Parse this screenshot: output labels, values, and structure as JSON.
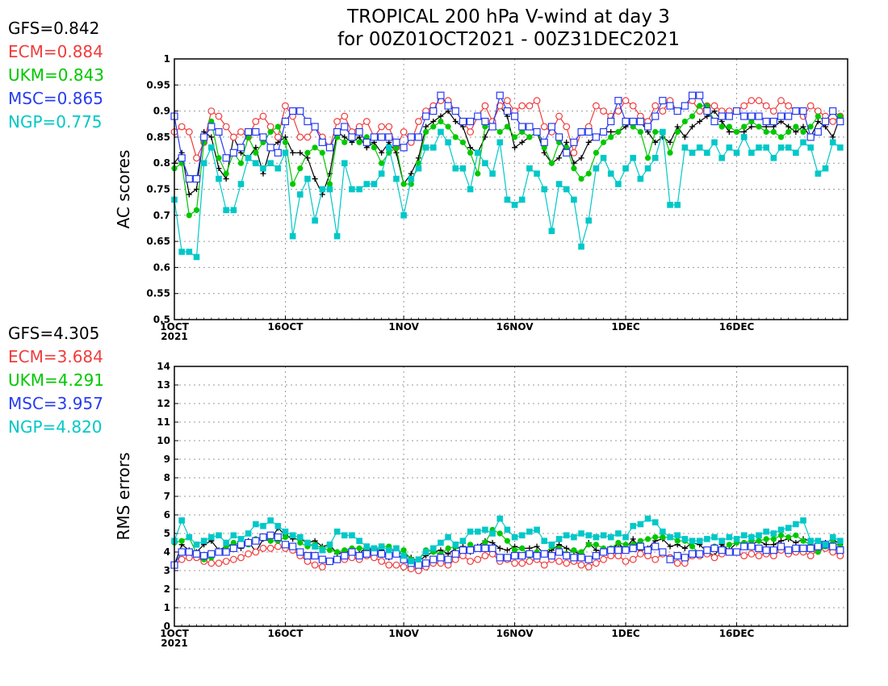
{
  "title_line1": "TROPICAL 200 hPa V-wind at day 3",
  "title_line2": "for 00Z01OCT2021 - 00Z31DEC2021",
  "chart_data": [
    {
      "type": "line",
      "ylabel": "AC scores",
      "ylim": [
        0.5,
        1.0
      ],
      "yticks": [
        "0.5",
        "0.55",
        "0.6",
        "0.65",
        "0.7",
        "0.75",
        "0.8",
        "0.85",
        "0.9",
        "0.95",
        "1"
      ],
      "x_start": "2021-10-01",
      "x_end": "2021-12-31",
      "xticks": [
        "1OCT\n2021",
        "16OCT",
        "1NOV",
        "16NOV",
        "1DEC",
        "16DEC"
      ],
      "grid": true,
      "stats": [
        {
          "text": "GFS=0.842",
          "color": "#000000"
        },
        {
          "text": "ECM=0.884",
          "color": "#f03c3c"
        },
        {
          "text": "UKM=0.843",
          "color": "#00c800"
        },
        {
          "text": "MSC=0.865",
          "color": "#283cf0"
        },
        {
          "text": "NGP=0.775",
          "color": "#00c8c8"
        }
      ],
      "series": [
        {
          "name": "GFS",
          "color": "#000000",
          "marker": "plus",
          "values": [
            0.8,
            0.82,
            0.74,
            0.75,
            0.86,
            0.85,
            0.79,
            0.77,
            0.85,
            0.82,
            0.81,
            0.83,
            0.78,
            0.83,
            0.84,
            0.85,
            0.82,
            0.82,
            0.81,
            0.77,
            0.74,
            0.78,
            0.86,
            0.85,
            0.84,
            0.85,
            0.83,
            0.84,
            0.82,
            0.84,
            0.82,
            0.76,
            0.78,
            0.81,
            0.87,
            0.88,
            0.89,
            0.9,
            0.88,
            0.87,
            0.83,
            0.82,
            0.85,
            0.88,
            0.91,
            0.89,
            0.83,
            0.84,
            0.85,
            0.86,
            0.82,
            0.8,
            0.81,
            0.84,
            0.8,
            0.81,
            0.84,
            0.85,
            0.86,
            0.86,
            0.86,
            0.87,
            0.88,
            0.88,
            0.86,
            0.84,
            0.85,
            0.84,
            0.87,
            0.85,
            0.87,
            0.88,
            0.89,
            0.9,
            0.88,
            0.86,
            0.86,
            0.86,
            0.87,
            0.87,
            0.87,
            0.87,
            0.88,
            0.87,
            0.86,
            0.87,
            0.85,
            0.88,
            0.87,
            0.85,
            0.89
          ]
        },
        {
          "name": "ECM",
          "color": "#f03c3c",
          "marker": "circle-open",
          "values": [
            0.86,
            0.87,
            0.86,
            0.81,
            0.84,
            0.9,
            0.89,
            0.87,
            0.85,
            0.86,
            0.85,
            0.88,
            0.89,
            0.87,
            0.85,
            0.91,
            0.89,
            0.85,
            0.85,
            0.87,
            0.85,
            0.83,
            0.88,
            0.89,
            0.86,
            0.87,
            0.88,
            0.85,
            0.87,
            0.87,
            0.83,
            0.86,
            0.84,
            0.88,
            0.9,
            0.91,
            0.92,
            0.92,
            0.9,
            0.88,
            0.86,
            0.89,
            0.91,
            0.88,
            0.91,
            0.92,
            0.9,
            0.91,
            0.91,
            0.92,
            0.87,
            0.86,
            0.89,
            0.87,
            0.82,
            0.86,
            0.87,
            0.91,
            0.9,
            0.89,
            0.9,
            0.92,
            0.91,
            0.89,
            0.88,
            0.91,
            0.9,
            0.92,
            0.9,
            0.91,
            0.92,
            0.9,
            0.91,
            0.91,
            0.9,
            0.9,
            0.9,
            0.91,
            0.92,
            0.92,
            0.91,
            0.9,
            0.92,
            0.91,
            0.9,
            0.89,
            0.91,
            0.9,
            0.89,
            0.88,
            0.89
          ]
        },
        {
          "name": "UKM",
          "color": "#00c800",
          "marker": "circle-filled",
          "values": [
            0.79,
            0.8,
            0.7,
            0.71,
            0.84,
            0.88,
            0.81,
            0.78,
            0.82,
            0.8,
            0.85,
            0.82,
            0.84,
            0.86,
            0.87,
            0.84,
            0.76,
            0.79,
            0.82,
            0.83,
            0.82,
            0.76,
            0.85,
            0.84,
            0.85,
            0.84,
            0.85,
            0.83,
            0.8,
            0.82,
            0.83,
            0.76,
            0.76,
            0.8,
            0.86,
            0.87,
            0.88,
            0.87,
            0.85,
            0.84,
            0.82,
            0.78,
            0.87,
            0.87,
            0.86,
            0.87,
            0.85,
            0.86,
            0.85,
            0.86,
            0.83,
            0.8,
            0.84,
            0.83,
            0.79,
            0.77,
            0.78,
            0.82,
            0.84,
            0.85,
            0.86,
            0.88,
            0.87,
            0.86,
            0.81,
            0.86,
            0.86,
            0.82,
            0.86,
            0.88,
            0.89,
            0.91,
            0.91,
            0.88,
            0.87,
            0.87,
            0.86,
            0.87,
            0.88,
            0.87,
            0.86,
            0.86,
            0.85,
            0.86,
            0.87,
            0.86,
            0.87,
            0.89,
            0.88,
            0.9,
            0.89
          ]
        },
        {
          "name": "MSC",
          "color": "#283cf0",
          "marker": "square-open",
          "values": [
            0.89,
            0.81,
            0.77,
            0.77,
            0.85,
            0.87,
            0.86,
            0.81,
            0.82,
            0.83,
            0.86,
            0.86,
            0.85,
            0.83,
            0.82,
            0.88,
            0.9,
            0.9,
            0.88,
            0.87,
            0.84,
            0.83,
            0.86,
            0.87,
            0.85,
            0.86,
            0.84,
            0.85,
            0.85,
            0.85,
            0.84,
            0.83,
            0.85,
            0.85,
            0.89,
            0.9,
            0.93,
            0.91,
            0.9,
            0.88,
            0.88,
            0.89,
            0.88,
            0.87,
            0.93,
            0.9,
            0.89,
            0.87,
            0.87,
            0.86,
            0.84,
            0.87,
            0.85,
            0.82,
            0.84,
            0.86,
            0.86,
            0.85,
            0.86,
            0.88,
            0.92,
            0.88,
            0.88,
            0.88,
            0.87,
            0.89,
            0.92,
            0.91,
            0.9,
            0.91,
            0.93,
            0.93,
            0.9,
            0.88,
            0.89,
            0.89,
            0.9,
            0.89,
            0.89,
            0.89,
            0.88,
            0.88,
            0.89,
            0.89,
            0.9,
            0.9,
            0.85,
            0.86,
            0.88,
            0.9,
            0.88
          ]
        },
        {
          "name": "NGP",
          "color": "#00c8c8",
          "marker": "square-filled",
          "values": [
            0.73,
            0.63,
            0.63,
            0.62,
            0.8,
            0.83,
            0.77,
            0.71,
            0.71,
            0.76,
            0.81,
            0.8,
            0.79,
            0.8,
            0.79,
            0.82,
            0.66,
            0.74,
            0.77,
            0.69,
            0.75,
            0.75,
            0.66,
            0.8,
            0.75,
            0.75,
            0.76,
            0.76,
            0.78,
            0.83,
            0.77,
            0.7,
            0.77,
            0.79,
            0.83,
            0.83,
            0.86,
            0.84,
            0.79,
            0.79,
            0.75,
            0.82,
            0.8,
            0.78,
            0.84,
            0.73,
            0.72,
            0.73,
            0.79,
            0.78,
            0.75,
            0.67,
            0.76,
            0.75,
            0.73,
            0.64,
            0.69,
            0.79,
            0.81,
            0.78,
            0.76,
            0.79,
            0.81,
            0.77,
            0.79,
            0.81,
            0.86,
            0.72,
            0.72,
            0.83,
            0.82,
            0.83,
            0.82,
            0.84,
            0.81,
            0.83,
            0.82,
            0.85,
            0.82,
            0.83,
            0.83,
            0.81,
            0.83,
            0.83,
            0.82,
            0.84,
            0.83,
            0.78,
            0.79,
            0.84,
            0.83
          ]
        }
      ]
    },
    {
      "type": "line",
      "ylabel": "RMS errors",
      "ylim": [
        0,
        14
      ],
      "yticks": [
        "0",
        "1",
        "2",
        "3",
        "4",
        "5",
        "6",
        "7",
        "8",
        "9",
        "10",
        "11",
        "12",
        "13",
        "14"
      ],
      "x_start": "2021-10-01",
      "x_end": "2021-12-31",
      "xticks": [
        "1OCT\n2021",
        "16OCT",
        "1NOV",
        "16NOV",
        "1DEC",
        "16DEC"
      ],
      "grid": true,
      "stats": [
        {
          "text": "GFS=4.305",
          "color": "#000000"
        },
        {
          "text": "ECM=3.684",
          "color": "#f03c3c"
        },
        {
          "text": "UKM=4.291",
          "color": "#00c800"
        },
        {
          "text": "MSC=3.957",
          "color": "#283cf0"
        },
        {
          "text": "NGP=4.820",
          "color": "#00c8c8"
        }
      ],
      "series": [
        {
          "name": "GFS",
          "color": "#000000",
          "marker": "plus",
          "values": [
            3.3,
            4.4,
            4.1,
            4.0,
            4.4,
            4.6,
            4.1,
            4.3,
            4.4,
            4.2,
            4.6,
            4.0,
            4.7,
            4.6,
            5.3,
            4.9,
            4.7,
            4.7,
            4.5,
            4.6,
            4.3,
            4.4,
            3.9,
            4.0,
            4.1,
            3.9,
            4.3,
            4.0,
            4.1,
            3.7,
            4.0,
            3.9,
            3.7,
            3.5,
            3.8,
            4.0,
            4.1,
            3.9,
            4.2,
            4.3,
            4.0,
            4.3,
            4.6,
            4.5,
            4.2,
            4.1,
            4.3,
            4.2,
            4.2,
            4.3,
            3.9,
            4.1,
            4.4,
            4.2,
            4.0,
            3.9,
            4.5,
            4.1,
            4.0,
            4.2,
            4.4,
            4.2,
            4.7,
            4.1,
            4.2,
            4.6,
            4.7,
            4.3,
            4.4,
            4.2,
            4.5,
            4.4,
            4.0,
            3.8,
            4.4,
            4.1,
            4.5,
            4.5,
            4.4,
            4.6,
            4.4,
            4.4,
            4.6,
            4.7,
            4.5,
            4.7,
            4.6,
            4.6,
            4.5,
            4.7,
            4.4
          ]
        },
        {
          "name": "ECM",
          "color": "#f03c3c",
          "marker": "circle-open",
          "values": [
            3.3,
            3.6,
            3.7,
            3.7,
            3.5,
            3.4,
            3.4,
            3.5,
            3.6,
            3.7,
            3.9,
            4.0,
            4.2,
            4.2,
            4.3,
            4.2,
            4.1,
            3.8,
            3.5,
            3.3,
            3.2,
            3.5,
            3.6,
            3.6,
            3.7,
            3.6,
            3.8,
            3.7,
            3.5,
            3.3,
            3.3,
            3.2,
            3.1,
            3.0,
            3.2,
            3.4,
            3.4,
            3.3,
            3.6,
            3.8,
            3.5,
            3.6,
            3.8,
            3.9,
            3.5,
            3.6,
            3.4,
            3.4,
            3.5,
            3.6,
            3.3,
            3.6,
            3.5,
            3.4,
            3.5,
            3.3,
            3.2,
            3.4,
            3.6,
            3.8,
            3.8,
            3.5,
            3.6,
            3.9,
            3.8,
            3.6,
            3.9,
            3.7,
            3.4,
            3.4,
            3.8,
            3.8,
            3.9,
            3.7,
            3.9,
            4.0,
            4.0,
            3.8,
            3.9,
            3.8,
            3.9,
            3.8,
            4.1,
            3.9,
            4.0,
            4.0,
            3.8,
            4.1,
            4.2,
            4.0,
            3.8
          ]
        },
        {
          "name": "UKM",
          "color": "#00c800",
          "marker": "circle-filled",
          "values": [
            4.5,
            4.6,
            4.8,
            3.9,
            3.6,
            3.7,
            4.0,
            4.3,
            4.5,
            4.4,
            4.4,
            4.7,
            4.8,
            4.6,
            4.6,
            4.8,
            4.9,
            4.5,
            4.3,
            4.4,
            4.2,
            4.1,
            4.0,
            4.1,
            4.2,
            4.2,
            4.2,
            4.0,
            4.3,
            4.3,
            3.9,
            4.1,
            3.6,
            3.6,
            4.1,
            4.0,
            3.9,
            4.2,
            4.3,
            4.1,
            4.4,
            4.2,
            4.5,
            5.2,
            5.0,
            4.6,
            4.1,
            4.2,
            3.8,
            4.0,
            3.9,
            4.3,
            4.2,
            3.9,
            4.1,
            4.0,
            4.4,
            4.4,
            4.2,
            4.2,
            4.5,
            4.4,
            4.4,
            4.6,
            4.7,
            4.8,
            4.8,
            4.8,
            4.6,
            4.6,
            4.3,
            3.9,
            4.1,
            4.3,
            4.1,
            4.4,
            4.5,
            4.5,
            4.6,
            4.6,
            4.7,
            4.7,
            4.9,
            4.8,
            4.9,
            4.6,
            4.4,
            4.0,
            4.3,
            4.5,
            4.3
          ]
        },
        {
          "name": "MSC",
          "color": "#283cf0",
          "marker": "square-open",
          "values": [
            3.3,
            4.0,
            4.0,
            3.9,
            3.8,
            3.9,
            4.0,
            4.0,
            4.2,
            4.4,
            4.5,
            4.6,
            4.8,
            4.9,
            4.8,
            4.4,
            4.3,
            4.0,
            3.8,
            3.8,
            3.6,
            3.5,
            3.6,
            3.8,
            4.0,
            3.8,
            3.9,
            4.0,
            3.9,
            3.8,
            3.9,
            3.6,
            3.4,
            3.3,
            3.4,
            3.6,
            3.7,
            3.6,
            3.9,
            4.1,
            4.1,
            4.2,
            4.2,
            4.2,
            3.7,
            3.7,
            3.8,
            3.8,
            3.9,
            3.8,
            3.9,
            3.8,
            4.0,
            3.8,
            3.7,
            3.7,
            3.6,
            3.8,
            4.0,
            4.1,
            4.1,
            4.1,
            4.2,
            4.3,
            4.1,
            4.3,
            4.0,
            3.6,
            3.8,
            3.7,
            3.9,
            3.9,
            4.1,
            4.2,
            4.1,
            4.0,
            4.0,
            4.3,
            4.3,
            4.2,
            4.1,
            4.1,
            4.3,
            4.1,
            4.2,
            4.2,
            4.2,
            4.3,
            4.4,
            4.3,
            4.1
          ]
        },
        {
          "name": "NGP",
          "color": "#00c8c8",
          "marker": "square-filled",
          "values": [
            4.6,
            5.7,
            4.8,
            4.4,
            4.6,
            4.8,
            4.9,
            4.5,
            4.9,
            4.7,
            5.0,
            5.5,
            5.4,
            5.7,
            5.4,
            5.1,
            4.9,
            4.8,
            4.5,
            4.3,
            4.1,
            4.4,
            5.1,
            4.9,
            4.9,
            4.6,
            4.3,
            4.2,
            4.3,
            4.1,
            4.2,
            3.8,
            3.5,
            3.6,
            4.0,
            4.2,
            4.5,
            4.8,
            4.4,
            4.6,
            5.1,
            5.1,
            5.2,
            5.0,
            5.8,
            5.2,
            4.8,
            4.9,
            5.1,
            5.2,
            4.6,
            4.4,
            4.7,
            4.9,
            4.8,
            5.0,
            4.9,
            4.8,
            4.9,
            4.8,
            5.0,
            4.8,
            5.4,
            5.5,
            5.8,
            5.6,
            5.1,
            4.8,
            4.9,
            4.7,
            4.6,
            4.6,
            4.7,
            4.8,
            4.6,
            4.8,
            4.7,
            4.9,
            4.8,
            4.9,
            5.1,
            5.0,
            5.2,
            5.3,
            5.5,
            5.7,
            4.6,
            4.6,
            4.4,
            4.8,
            4.6
          ]
        }
      ]
    }
  ]
}
